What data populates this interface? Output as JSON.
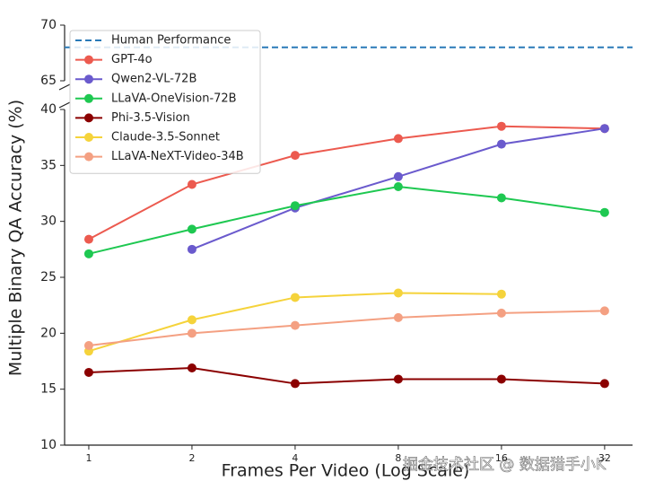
{
  "chart_data": {
    "type": "line",
    "x_label": "Frames Per Video (Log Scale)",
    "y_label": "Multiple Binary QA Accuracy (%)",
    "x": [
      1,
      2,
      4,
      8,
      16,
      32
    ],
    "x_log_scale": true,
    "xlim": [
      0.85,
      38.6
    ],
    "xticks": [
      1,
      2,
      4,
      8,
      16,
      32
    ],
    "ylim": [
      10,
      40
    ],
    "yticks": [
      10,
      15,
      20,
      25,
      30,
      35,
      40
    ],
    "y_upper_lim": [
      65,
      70
    ],
    "y_upper_ticks": [
      65,
      70
    ],
    "reference_lines": [
      {
        "name": "Human Performance",
        "value": 68,
        "color": "#2a7ab8",
        "style": "dashed"
      }
    ],
    "series": [
      {
        "name": "GPT-4o",
        "color": "#ec5a4f",
        "values": [
          28.4,
          33.3,
          35.9,
          37.4,
          38.5,
          38.3
        ]
      },
      {
        "name": "Qwen2-VL-72B",
        "color": "#6a5acd",
        "values": [
          null,
          27.5,
          31.2,
          34.0,
          36.9,
          38.3
        ]
      },
      {
        "name": "LLaVA-OneVision-72B",
        "color": "#1ec851",
        "values": [
          27.1,
          29.3,
          31.4,
          33.1,
          32.1,
          30.8
        ]
      },
      {
        "name": "Phi-3.5-Vision",
        "color": "#8b0000",
        "values": [
          16.5,
          16.9,
          15.5,
          15.9,
          15.9,
          15.5
        ]
      },
      {
        "name": "Claude-3.5-Sonnet",
        "color": "#f5d33b",
        "values": [
          18.4,
          21.2,
          23.2,
          23.6,
          23.5,
          null
        ]
      },
      {
        "name": "LLaVA-NeXT-Video-34B",
        "color": "#f4a082",
        "values": [
          18.9,
          20.0,
          20.7,
          21.4,
          21.8,
          22.0
        ]
      }
    ],
    "legend": "upper left",
    "watermark": "掘金技术社区 @ 数据猎手小K"
  }
}
